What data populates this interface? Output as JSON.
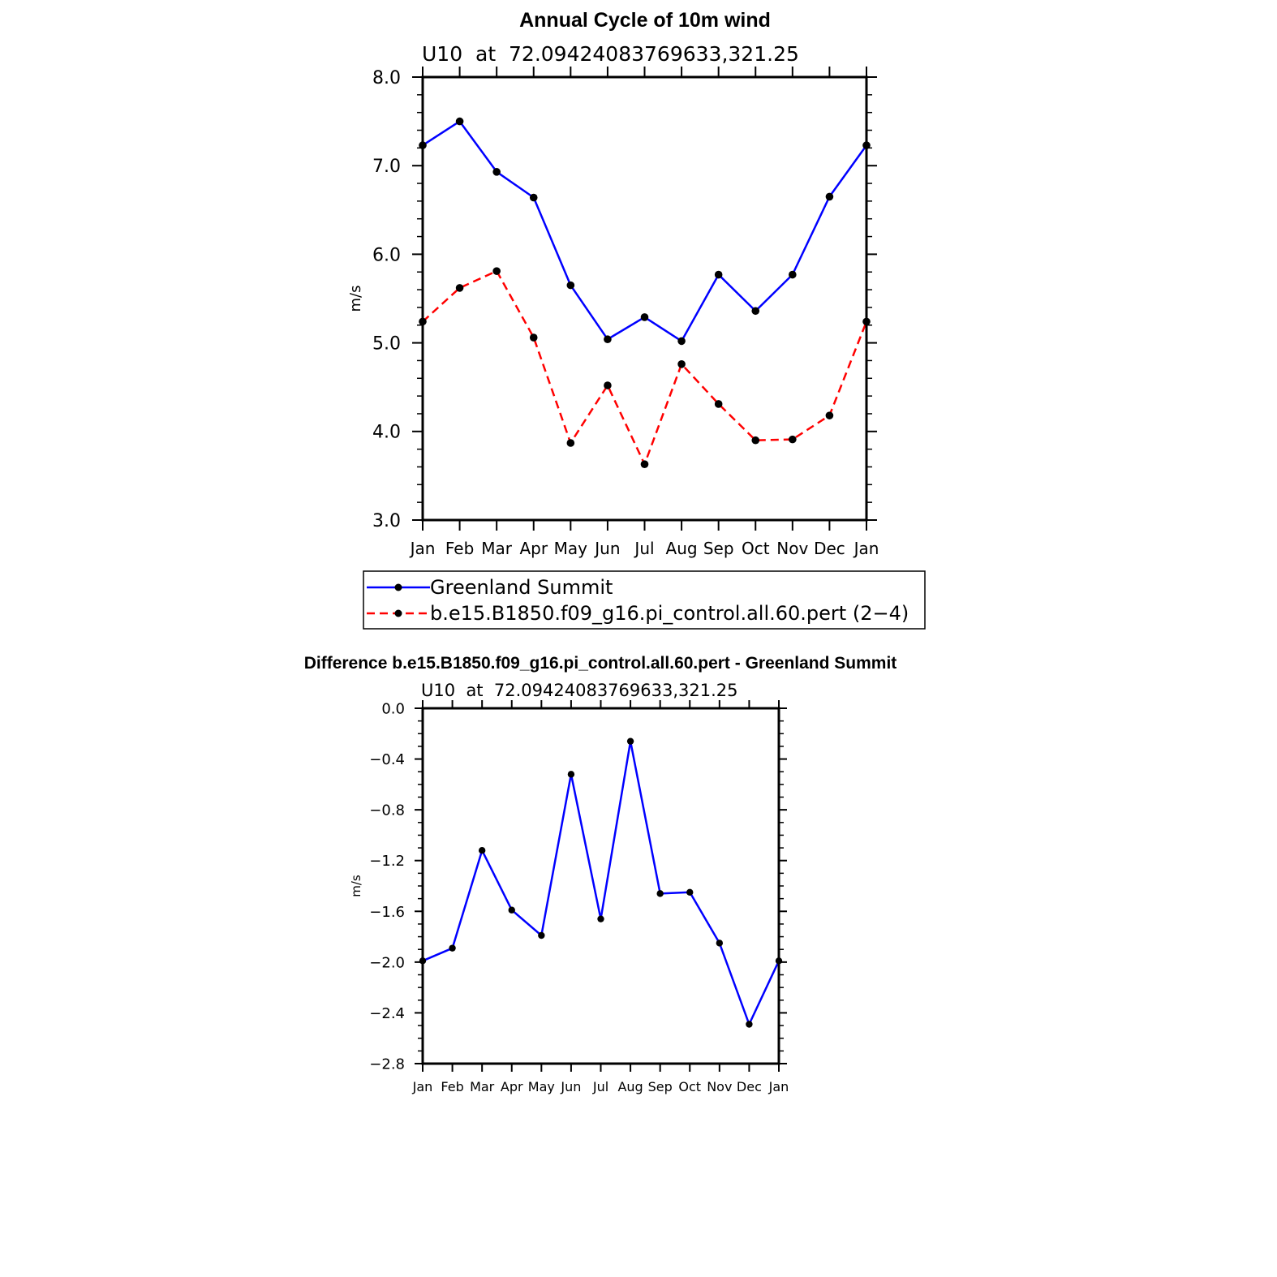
{
  "chart_data": [
    {
      "type": "line",
      "title": "Annual Cycle of 10m wind",
      "subtitle": "U10  at  72.09424083769633,321.25",
      "xlabel": "",
      "ylabel": "m/s",
      "ylim": [
        3.0,
        8.0
      ],
      "yticks": [
        "3.0",
        "4.0",
        "5.0",
        "6.0",
        "7.0",
        "8.0"
      ],
      "categories": [
        "Jan",
        "Feb",
        "Mar",
        "Apr",
        "May",
        "Jun",
        "Jul",
        "Aug",
        "Sep",
        "Oct",
        "Nov",
        "Dec",
        "Jan"
      ],
      "series": [
        {
          "name": "Greenland Summit",
          "color": "#0000ff",
          "dash": "solid",
          "values": [
            7.23,
            7.5,
            6.93,
            6.64,
            5.65,
            5.04,
            5.29,
            5.02,
            5.77,
            5.36,
            5.77,
            6.65,
            7.23
          ]
        },
        {
          "name": "b.e15.B1850.f09_g16.pi_control.all.60.pert (2−4)",
          "color": "#ff0000",
          "dash": "dashed",
          "values": [
            5.24,
            5.62,
            5.81,
            5.06,
            3.87,
            4.52,
            3.63,
            4.76,
            4.31,
            3.9,
            3.91,
            4.18,
            5.24
          ]
        }
      ],
      "legend": "below"
    },
    {
      "type": "line",
      "title": "Difference b.e15.B1850.f09_g16.pi_control.all.60.pert - Greenland Summit",
      "subtitle": "U10  at  72.09424083769633,321.25",
      "xlabel": "",
      "ylabel": "m/s",
      "ylim": [
        -2.8,
        0.0
      ],
      "yticks": [
        "−2.8",
        "−2.4",
        "−2.0",
        "−1.6",
        "−1.2",
        "−0.8",
        "−0.4",
        "0.0"
      ],
      "categories": [
        "Jan",
        "Feb",
        "Mar",
        "Apr",
        "May",
        "Jun",
        "Jul",
        "Aug",
        "Sep",
        "Oct",
        "Nov",
        "Dec",
        "Jan"
      ],
      "series": [
        {
          "name": "Difference",
          "color": "#0000ff",
          "dash": "solid",
          "values": [
            -1.99,
            -1.89,
            -1.12,
            -1.59,
            -1.79,
            -0.52,
            -1.66,
            -0.26,
            -1.46,
            -1.45,
            -1.85,
            -2.49,
            -1.99
          ]
        }
      ]
    }
  ]
}
